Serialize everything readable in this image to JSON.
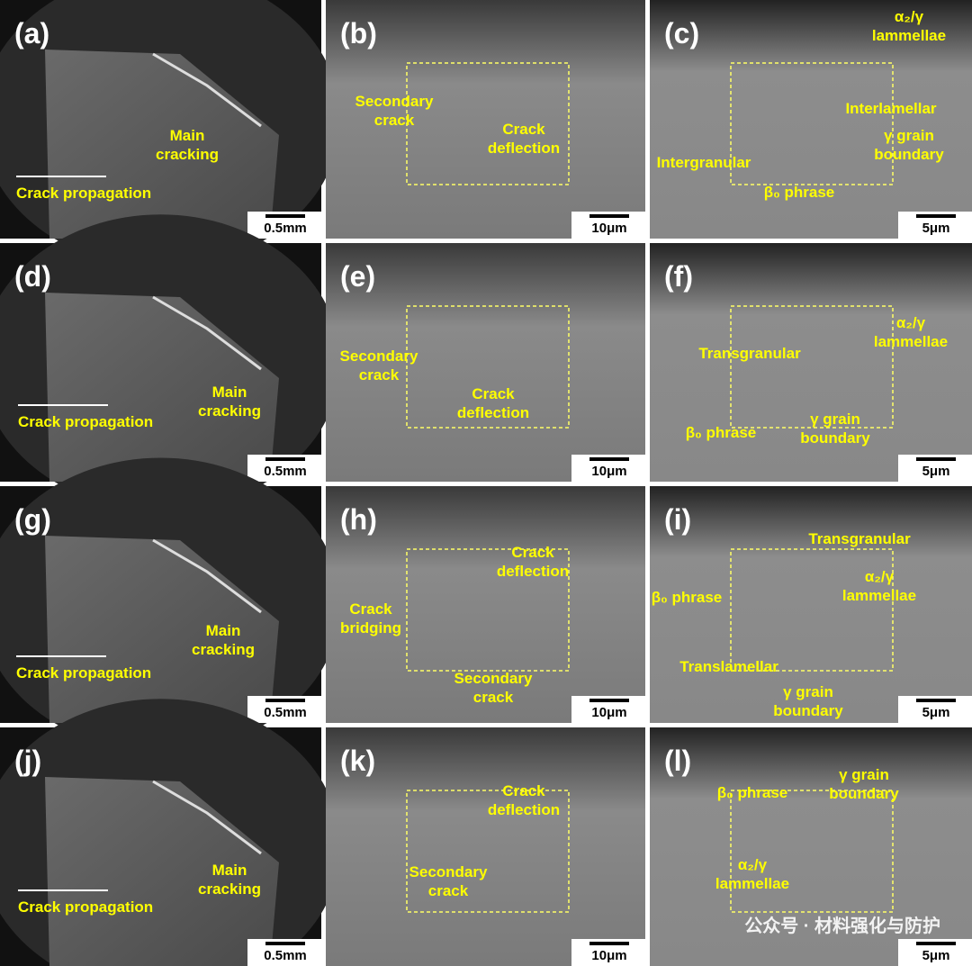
{
  "panels": [
    {
      "label": "(a)",
      "scale_bar": "0.5mm",
      "annotations": [
        {
          "lines": [
            "Main",
            "cracking"
          ]
        },
        {
          "lines": [
            "Crack propagation"
          ]
        }
      ]
    },
    {
      "label": "(b)",
      "scale_bar": "10μm",
      "annotations": [
        {
          "lines": [
            "Secondary",
            "crack"
          ]
        },
        {
          "lines": [
            "Crack",
            "deflection"
          ]
        }
      ]
    },
    {
      "label": "(c)",
      "scale_bar": "5μm",
      "annotations": [
        {
          "lines": [
            "α₂/γ",
            "lammellae"
          ]
        },
        {
          "lines": [
            "Interlamellar"
          ]
        },
        {
          "lines": [
            "γ grain",
            "boundary"
          ]
        },
        {
          "lines": [
            "Intergranular"
          ]
        },
        {
          "lines": [
            "β₀ phrase"
          ]
        }
      ]
    },
    {
      "label": "(d)",
      "scale_bar": "0.5mm",
      "annotations": [
        {
          "lines": [
            "Main",
            "cracking"
          ]
        },
        {
          "lines": [
            "Crack propagation"
          ]
        }
      ]
    },
    {
      "label": "(e)",
      "scale_bar": "10μm",
      "annotations": [
        {
          "lines": [
            "Secondary",
            "crack"
          ]
        },
        {
          "lines": [
            "Crack",
            "deflection"
          ]
        }
      ]
    },
    {
      "label": "(f)",
      "scale_bar": "5μm",
      "annotations": [
        {
          "lines": [
            "Transgranular"
          ]
        },
        {
          "lines": [
            "α₂/γ",
            "lammellae"
          ]
        },
        {
          "lines": [
            "β₀ phrase"
          ]
        },
        {
          "lines": [
            "γ grain",
            "boundary"
          ]
        }
      ]
    },
    {
      "label": "(g)",
      "scale_bar": "0.5mm",
      "annotations": [
        {
          "lines": [
            "Main",
            "cracking"
          ]
        },
        {
          "lines": [
            "Crack propagation"
          ]
        }
      ]
    },
    {
      "label": "(h)",
      "scale_bar": "10μm",
      "annotations": [
        {
          "lines": [
            "Crack",
            "deflection"
          ]
        },
        {
          "lines": [
            "Crack",
            "bridging"
          ]
        },
        {
          "lines": [
            "Secondary",
            "crack"
          ]
        }
      ]
    },
    {
      "label": "(i)",
      "scale_bar": "5μm",
      "annotations": [
        {
          "lines": [
            "Transgranular"
          ]
        },
        {
          "lines": [
            "α₂/γ",
            "lammellae"
          ]
        },
        {
          "lines": [
            "β₀ phrase"
          ]
        },
        {
          "lines": [
            "Translamellar"
          ]
        },
        {
          "lines": [
            "γ grain",
            "boundary"
          ]
        }
      ]
    },
    {
      "label": "(j)",
      "scale_bar": "0.5mm",
      "annotations": [
        {
          "lines": [
            "Main",
            "cracking"
          ]
        },
        {
          "lines": [
            "Crack propagation"
          ]
        }
      ]
    },
    {
      "label": "(k)",
      "scale_bar": "10μm",
      "annotations": [
        {
          "lines": [
            "Crack",
            "deflection"
          ]
        },
        {
          "lines": [
            "Secondary",
            "crack"
          ]
        }
      ]
    },
    {
      "label": "(l)",
      "scale_bar": "5μm",
      "annotations": [
        {
          "lines": [
            "β₀ phrase"
          ]
        },
        {
          "lines": [
            "γ grain",
            "boundary"
          ]
        },
        {
          "lines": [
            "α₂/γ",
            "lammellae"
          ]
        }
      ]
    }
  ],
  "watermark": "公众号 · 材料强化与防护"
}
